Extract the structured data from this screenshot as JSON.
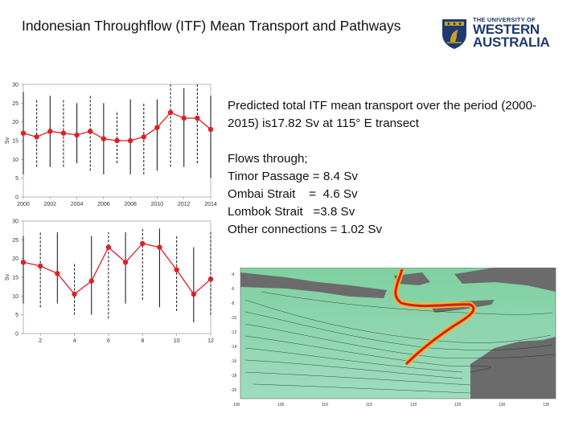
{
  "title": "Indonesian Throughflow (ITF)  Mean Transport and Pathways",
  "logo": {
    "line1": "THE UNIVERSITY OF",
    "line2": "WESTERN",
    "line3": "AUSTRALIA"
  },
  "info": {
    "summary": "Predicted total ITF mean transport over the period (2000-2015) is17.82  Sv at 115° E transect",
    "flows_heading": "Flows through;",
    "flows": [
      "Timor Passage = 8.4 Sv",
      "Ombai Strait    =  4.6 Sv",
      "Lombok Strait   =3.8 Sv",
      "Other connections = 1.02 Sv"
    ]
  },
  "colors": {
    "series": "#dd1f26",
    "logo_blue": "#1e3a6e",
    "logo_gold": "#c9a227"
  },
  "chart_data": [
    {
      "type": "line",
      "title": "",
      "xlabel": "",
      "ylabel": "Sv",
      "xlim": [
        2000,
        2014
      ],
      "ylim": [
        0,
        30
      ],
      "xticks": [
        2000,
        2002,
        2004,
        2006,
        2008,
        2010,
        2012,
        2014
      ],
      "yticks": [
        0,
        5,
        10,
        15,
        20,
        25,
        30
      ],
      "series": [
        {
          "x": [
            2000,
            2001,
            2002,
            2003,
            2004,
            2005,
            2006,
            2007,
            2008,
            2009,
            2010,
            2011,
            2012,
            2013,
            2014
          ],
          "values": [
            17,
            16,
            17.5,
            17,
            16.5,
            17.5,
            15.5,
            15,
            15,
            16,
            18.5,
            22.5,
            21,
            21,
            18
          ],
          "error_low": [
            6,
            8,
            8,
            8,
            9,
            7,
            6,
            9,
            6,
            6,
            7,
            8,
            8,
            9,
            5
          ],
          "error_high": [
            28,
            26,
            27,
            26,
            25,
            27,
            25,
            23,
            26,
            25,
            26,
            30,
            29,
            30,
            27
          ]
        }
      ]
    },
    {
      "type": "line",
      "title": "",
      "xlabel": "",
      "ylabel": "Sv",
      "xlim": [
        1,
        12
      ],
      "ylim": [
        0,
        30
      ],
      "xticks": [
        2,
        4,
        6,
        8,
        10,
        12
      ],
      "yticks": [
        0,
        5,
        10,
        15,
        20,
        25,
        30
      ],
      "series": [
        {
          "x": [
            1,
            2,
            3,
            4,
            5,
            6,
            7,
            8,
            9,
            10,
            11,
            12
          ],
          "values": [
            19,
            18,
            16,
            10.5,
            14,
            23,
            19,
            24,
            23,
            17,
            10.5,
            14.5
          ],
          "error_low": [
            8,
            7,
            8,
            5,
            5,
            4,
            8,
            9,
            7,
            6,
            3,
            5
          ],
          "error_high": [
            26,
            27,
            27,
            19,
            26,
            27,
            27,
            28,
            28,
            26,
            23,
            27
          ]
        }
      ]
    }
  ],
  "map_data": {
    "type": "heatmap",
    "x_ticks": [
      "100",
      "105",
      "110",
      "115",
      "120",
      "125",
      "130",
      "135"
    ],
    "y_ticks": [
      "-4",
      "-6",
      "-8",
      "-10",
      "-12",
      "-14",
      "-16",
      "-18",
      "-20"
    ]
  }
}
